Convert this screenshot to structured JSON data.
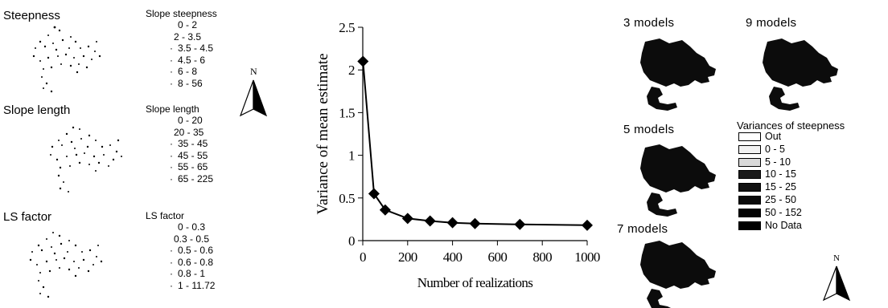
{
  "left_panels": [
    {
      "title": "Steepness",
      "legend_title": "Slope steepness",
      "classes": [
        "0 - 2",
        "2 - 3.5",
        "3.5 - 4.5",
        "4.5 - 6",
        "6 - 8",
        "8 - 56"
      ]
    },
    {
      "title": "Slope length",
      "legend_title": "Slope length",
      "classes": [
        "0 - 20",
        "20 - 35",
        "35 - 45",
        "45 - 55",
        "55 - 65",
        "65 - 225"
      ]
    },
    {
      "title": "LS factor",
      "legend_title": "LS factor",
      "classes": [
        "0 - 0.3",
        "0.3 - 0.5",
        "0.5 - 0.6",
        "0.6 - 0.8",
        "0.8 - 1",
        "1 - 11.72"
      ]
    }
  ],
  "north_label": "N",
  "chart_data": {
    "type": "line",
    "x": [
      1,
      50,
      100,
      200,
      300,
      400,
      500,
      700,
      1000
    ],
    "y": [
      2.1,
      0.55,
      0.36,
      0.26,
      0.23,
      0.21,
      0.2,
      0.19,
      0.18
    ],
    "xlabel": "Number of realizations",
    "ylabel": "Variance of mean estimate",
    "xlim": [
      0,
      1000
    ],
    "ylim": [
      0,
      2.5
    ],
    "x_ticks": [
      "0",
      "200",
      "400",
      "600",
      "800",
      "1000"
    ],
    "y_ticks": [
      "0",
      "0.5",
      "1",
      "1.5",
      "2",
      "2.5"
    ],
    "marker": "diamond",
    "grid": false
  },
  "model_maps": [
    {
      "title": "3 models"
    },
    {
      "title": "9 models"
    },
    {
      "title": "5 models"
    },
    {
      "title": "7 models"
    }
  ],
  "variance_legend": {
    "title": "Variances of steepness",
    "items": [
      {
        "label": "Out",
        "color": "#ffffff"
      },
      {
        "label": "0 - 5",
        "color": "#f2f2f2"
      },
      {
        "label": "5 - 10",
        "color": "#d9d9d9"
      },
      {
        "label": "10 - 15",
        "color": "#1a1a1a"
      },
      {
        "label": "15 - 25",
        "color": "#111111"
      },
      {
        "label": "25 - 50",
        "color": "#0a0a0a"
      },
      {
        "label": "50 - 152",
        "color": "#050505"
      },
      {
        "label": "No Data",
        "color": "#000000"
      }
    ]
  },
  "colors": {
    "map_fill": "#0c0c0c",
    "line": "#000000"
  }
}
